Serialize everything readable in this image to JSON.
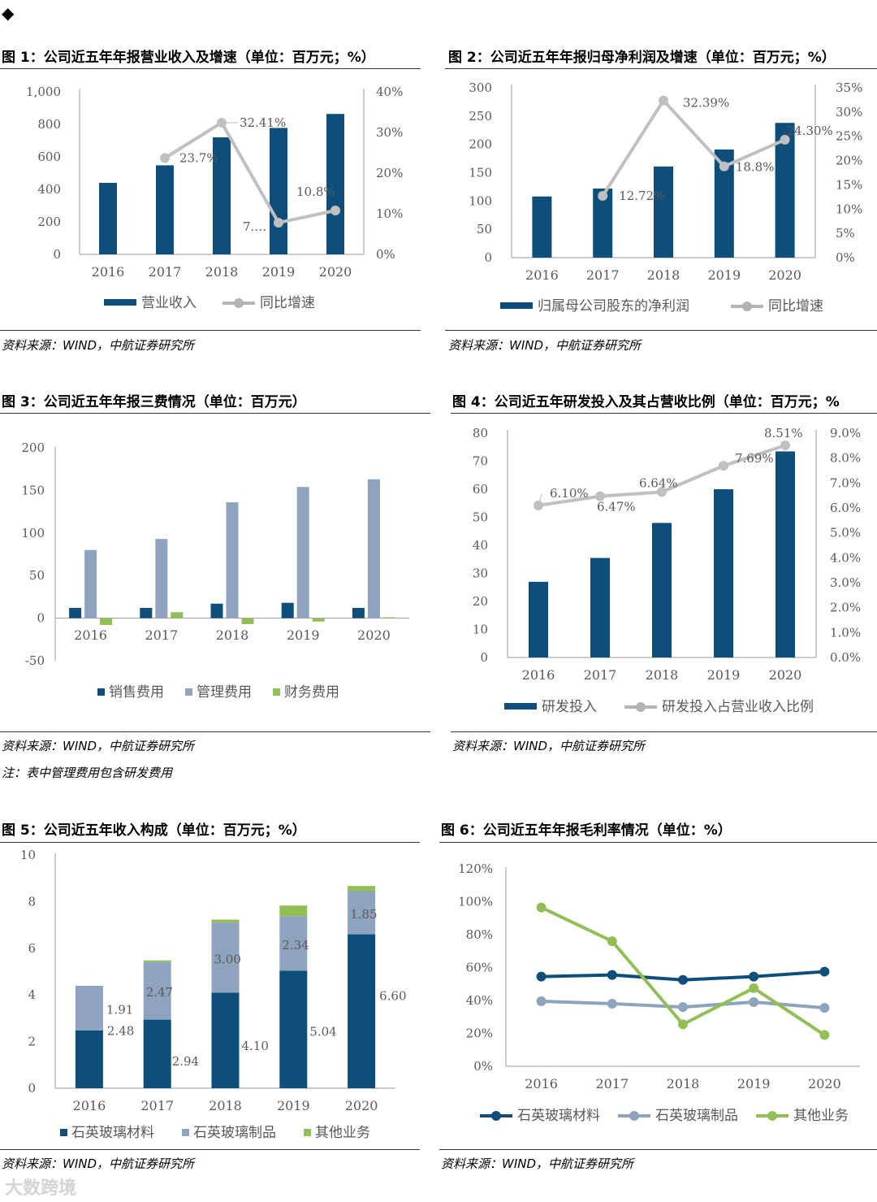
{
  "page": {
    "bullet": "◆",
    "watermark": "大数跨境",
    "source_text": "资料来源：WIND，中航证券研究所",
    "note_fig3": "注：表中管理费用包含研发费用"
  },
  "colors": {
    "navy": "#0d4f7a",
    "grey_line": "#c0c0c0",
    "slate": "#8ea3bd",
    "green": "#92bf55"
  },
  "chart_data": [
    {
      "id": "fig1",
      "type": "bar+line",
      "title": "图 1：公司近五年年报营业收入及增速（单位：百万元；%）",
      "categories": [
        "2016",
        "2017",
        "2018",
        "2019",
        "2020"
      ],
      "left_ticks": [
        "0",
        "200",
        "400",
        "600",
        "800",
        "1,000"
      ],
      "right_ticks": [
        "0%",
        "10%",
        "20%",
        "30%",
        "40%"
      ],
      "ylim_left": [
        0,
        1000
      ],
      "ylim_right": [
        0,
        40
      ],
      "series": [
        {
          "name": "营业收入",
          "kind": "bar",
          "values": [
            440,
            548,
            720,
            778,
            864
          ]
        },
        {
          "name": "同比增速",
          "kind": "line",
          "values": [
            null,
            23.7,
            32.41,
            7.8,
            10.8
          ]
        }
      ],
      "data_labels": [
        null,
        "23.7%",
        "32.41%",
        "7.…",
        "10.8%"
      ]
    },
    {
      "id": "fig2",
      "type": "bar+line",
      "title": "图 2：公司近五年年报归母净利润及增速（单位：百万元；%）",
      "categories": [
        "2016",
        "2017",
        "2018",
        "2019",
        "2020"
      ],
      "left_ticks": [
        "0",
        "50",
        "100",
        "150",
        "200",
        "250",
        "300"
      ],
      "right_ticks": [
        "0%",
        "5%",
        "10%",
        "15%",
        "20%",
        "25%",
        "30%",
        "35%"
      ],
      "ylim_left": [
        0,
        300
      ],
      "ylim_right": [
        0,
        35
      ],
      "series": [
        {
          "name": "归属母公司股东的净利润",
          "kind": "bar",
          "values": [
            108,
            122,
            161,
            191,
            238
          ]
        },
        {
          "name": "同比增速",
          "kind": "line",
          "values": [
            null,
            12.72,
            32.39,
            18.8,
            24.3
          ]
        }
      ],
      "data_labels": [
        null,
        "12.72%",
        "32.39%",
        "18.8%",
        "24.30%"
      ]
    },
    {
      "id": "fig3",
      "type": "bar",
      "title": "图 3：公司近五年年报三费情况（单位：百万元）",
      "categories": [
        "2016",
        "2017",
        "2018",
        "2019",
        "2020"
      ],
      "left_ticks": [
        "-50",
        "0",
        "50",
        "100",
        "150",
        "200"
      ],
      "ylim": [
        -50,
        200
      ],
      "series": [
        {
          "name": "销售费用",
          "values": [
            12,
            12,
            17,
            18,
            12
          ]
        },
        {
          "name": "管理费用",
          "values": [
            80,
            93,
            136,
            154,
            163
          ]
        },
        {
          "name": "财务费用",
          "values": [
            -8,
            7,
            -7,
            -4,
            1
          ]
        }
      ]
    },
    {
      "id": "fig4",
      "type": "bar+line",
      "title": "图 4：公司近五年研发投入及其占营收比例（单位：百万元；%",
      "categories": [
        "2016",
        "2017",
        "2018",
        "2019",
        "2020"
      ],
      "left_ticks": [
        "0",
        "10",
        "20",
        "30",
        "40",
        "50",
        "60",
        "70",
        "80"
      ],
      "right_ticks": [
        "0.0%",
        "1.0%",
        "2.0%",
        "3.0%",
        "4.0%",
        "5.0%",
        "6.0%",
        "7.0%",
        "8.0%",
        "9.0%"
      ],
      "ylim_left": [
        0,
        80
      ],
      "ylim_right": [
        0,
        9
      ],
      "series": [
        {
          "name": "研发投入",
          "kind": "bar",
          "values": [
            27,
            35.5,
            48,
            60,
            73.5
          ]
        },
        {
          "name": "研发投入占营业收入比例",
          "kind": "line",
          "values": [
            6.1,
            6.47,
            6.64,
            7.69,
            8.51
          ]
        }
      ],
      "data_labels": [
        "6.10%",
        "6.47%",
        "6.64%",
        "7.69%",
        "8.51%"
      ]
    },
    {
      "id": "fig5",
      "type": "stacked-bar",
      "title": "图 5：公司近五年收入构成（单位：百万元；%）",
      "categories": [
        "2016",
        "2017",
        "2018",
        "2019",
        "2020"
      ],
      "left_ticks": [
        "0",
        "2",
        "4",
        "6",
        "8",
        "10"
      ],
      "ylim": [
        0,
        10
      ],
      "series": [
        {
          "name": "石英玻璃材料",
          "values": [
            2.48,
            2.94,
            4.1,
            5.04,
            6.6
          ]
        },
        {
          "name": "石英玻璃制品",
          "values": [
            1.91,
            2.47,
            3.0,
            2.34,
            1.85
          ]
        },
        {
          "name": "其他业务",
          "values": [
            0.0,
            0.07,
            0.13,
            0.45,
            0.22
          ]
        }
      ],
      "data_labels": {
        "石英玻璃材料": [
          "2.48",
          "2.94",
          "4.10",
          "5.04",
          "6.60"
        ],
        "石英玻璃制品": [
          "1.91",
          "2.47",
          "3.00",
          "2.34",
          "1.85"
        ]
      }
    },
    {
      "id": "fig6",
      "type": "line",
      "title": "图 6：公司近五年年报毛利率情况（单位：%）",
      "categories": [
        "2016",
        "2017",
        "2018",
        "2019",
        "2020"
      ],
      "left_ticks": [
        "0%",
        "20%",
        "40%",
        "60%",
        "80%",
        "100%",
        "120%"
      ],
      "ylim": [
        0,
        120
      ],
      "series": [
        {
          "name": "石英玻璃材料",
          "values": [
            54.5,
            55.5,
            52.5,
            54.5,
            57.5
          ]
        },
        {
          "name": "石英玻璃制品",
          "values": [
            39.5,
            38.0,
            36.0,
            39.0,
            35.5
          ]
        },
        {
          "name": "其他业务",
          "values": [
            96.5,
            76.0,
            25.5,
            47.5,
            19.0
          ]
        }
      ]
    }
  ]
}
